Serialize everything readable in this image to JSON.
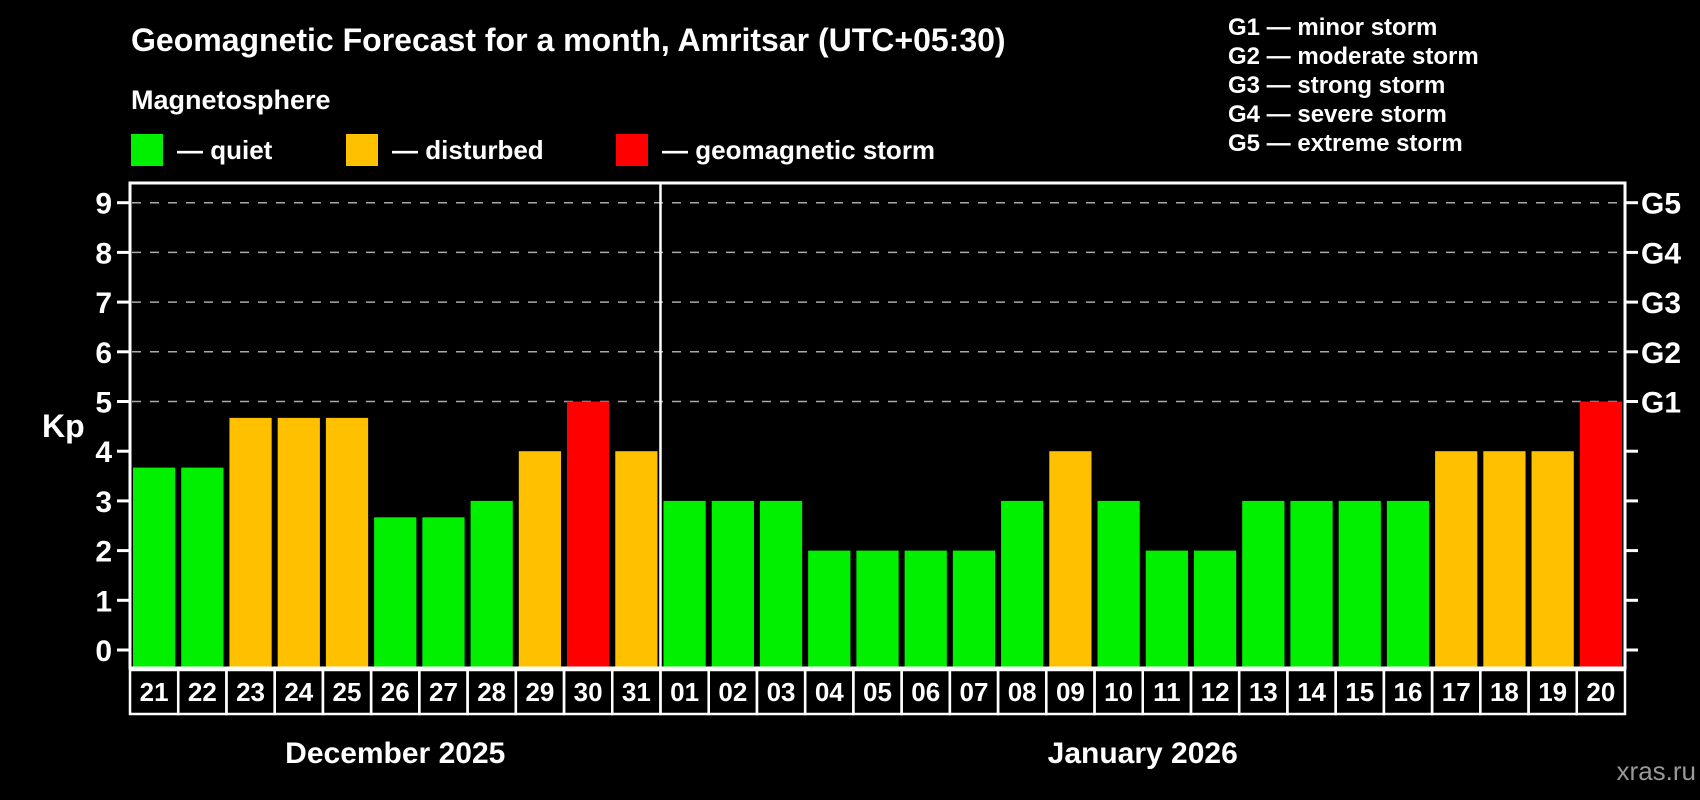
{
  "title": "Geomagnetic Forecast for a month, Amritsar (UTC+05:30)",
  "subtitle": "Magnetosphere",
  "legend": {
    "items": [
      {
        "key": "quiet",
        "label": "— quiet",
        "color": "#00f000"
      },
      {
        "key": "disturbed",
        "label": "— disturbed",
        "color": "#ffc000"
      },
      {
        "key": "storm",
        "label": "— geomagnetic storm",
        "color": "#ff0000"
      }
    ]
  },
  "g_legend": {
    "items": [
      "G1 — minor storm",
      "G2 — moderate storm",
      "G3 — strong storm",
      "G4 — severe storm",
      "G5 — extreme storm"
    ]
  },
  "watermark": "xras.ru",
  "colors": {
    "background": "#000000",
    "text": "#ffffff",
    "grid": "#aaaaaa",
    "watermark": "#999999",
    "quiet": "#00f000",
    "disturbed": "#ffc000",
    "storm": "#ff0000"
  },
  "chart_data": {
    "type": "bar",
    "title": "Geomagnetic Forecast for a month, Amritsar (UTC+05:30)",
    "ylabel": "Kp",
    "ylim": [
      0,
      9
    ],
    "y_ticks": [
      0,
      1,
      2,
      3,
      4,
      5,
      6,
      7,
      8,
      9
    ],
    "gridlines_at": [
      5,
      6,
      7,
      8,
      9
    ],
    "grid": "dashed horizontal at storm levels only",
    "legend_position": "top-left",
    "right_axis_labels": [
      {
        "label": "G1",
        "kp": 5
      },
      {
        "label": "G2",
        "kp": 6
      },
      {
        "label": "G3",
        "kp": 7
      },
      {
        "label": "G4",
        "kp": 8
      },
      {
        "label": "G5",
        "kp": 9
      }
    ],
    "months": [
      {
        "label": "December 2025",
        "days": [
          {
            "day": "21",
            "kp": 3.67,
            "status": "quiet"
          },
          {
            "day": "22",
            "kp": 3.67,
            "status": "quiet"
          },
          {
            "day": "23",
            "kp": 4.67,
            "status": "disturbed"
          },
          {
            "day": "24",
            "kp": 4.67,
            "status": "disturbed"
          },
          {
            "day": "25",
            "kp": 4.67,
            "status": "disturbed"
          },
          {
            "day": "26",
            "kp": 2.67,
            "status": "quiet"
          },
          {
            "day": "27",
            "kp": 2.67,
            "status": "quiet"
          },
          {
            "day": "28",
            "kp": 3,
            "status": "quiet"
          },
          {
            "day": "29",
            "kp": 4,
            "status": "disturbed"
          },
          {
            "day": "30",
            "kp": 5,
            "status": "storm"
          },
          {
            "day": "31",
            "kp": 4,
            "status": "disturbed"
          }
        ]
      },
      {
        "label": "January 2026",
        "days": [
          {
            "day": "01",
            "kp": 3,
            "status": "quiet"
          },
          {
            "day": "02",
            "kp": 3,
            "status": "quiet"
          },
          {
            "day": "03",
            "kp": 3,
            "status": "quiet"
          },
          {
            "day": "04",
            "kp": 2,
            "status": "quiet"
          },
          {
            "day": "05",
            "kp": 2,
            "status": "quiet"
          },
          {
            "day": "06",
            "kp": 2,
            "status": "quiet"
          },
          {
            "day": "07",
            "kp": 2,
            "status": "quiet"
          },
          {
            "day": "08",
            "kp": 3,
            "status": "quiet"
          },
          {
            "day": "09",
            "kp": 4,
            "status": "disturbed"
          },
          {
            "day": "10",
            "kp": 3,
            "status": "quiet"
          },
          {
            "day": "11",
            "kp": 2,
            "status": "quiet"
          },
          {
            "day": "12",
            "kp": 2,
            "status": "quiet"
          },
          {
            "day": "13",
            "kp": 3,
            "status": "quiet"
          },
          {
            "day": "14",
            "kp": 3,
            "status": "quiet"
          },
          {
            "day": "15",
            "kp": 3,
            "status": "quiet"
          },
          {
            "day": "16",
            "kp": 3,
            "status": "quiet"
          },
          {
            "day": "17",
            "kp": 4,
            "status": "disturbed"
          },
          {
            "day": "18",
            "kp": 4,
            "status": "disturbed"
          },
          {
            "day": "19",
            "kp": 4,
            "status": "disturbed"
          },
          {
            "day": "20",
            "kp": 5,
            "status": "storm"
          }
        ]
      }
    ]
  }
}
